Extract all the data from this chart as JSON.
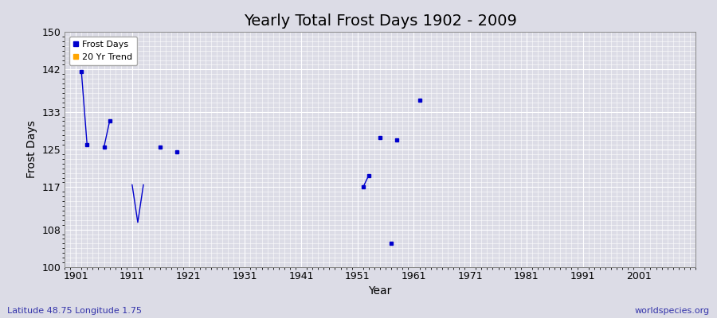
{
  "title": "Yearly Total Frost Days 1902 - 2009",
  "xlabel": "Year",
  "ylabel": "Frost Days",
  "subtitle_left": "Latitude 48.75 Longitude 1.75",
  "subtitle_right": "worldspecies.org",
  "ylim": [
    100,
    150
  ],
  "xlim": [
    1899,
    2011
  ],
  "yticks": [
    100,
    108,
    117,
    125,
    133,
    142,
    150
  ],
  "xticks": [
    1901,
    1911,
    1921,
    1931,
    1941,
    1951,
    1961,
    1971,
    1981,
    1991,
    2001
  ],
  "xtick_labels": [
    "1901",
    "1911",
    "1921",
    "1931",
    "1941",
    "1951",
    "1961",
    "1971",
    "1981",
    "1991",
    "2001"
  ],
  "background_color": "#dcdce6",
  "plot_bg_color": "#dcdce6",
  "grid_color": "#ffffff",
  "frost_days_color": "#0000cc",
  "trend_color": "#ffa500",
  "frost_points": [
    [
      1902,
      141.5
    ],
    [
      1903,
      126.0
    ],
    [
      1906,
      125.5
    ],
    [
      1907,
      131.0
    ],
    [
      1916,
      125.5
    ],
    [
      1919,
      124.5
    ],
    [
      1952,
      117.0
    ],
    [
      1953,
      119.5
    ],
    [
      1955,
      127.5
    ],
    [
      1957,
      105.0
    ],
    [
      1962,
      135.5
    ],
    [
      1958,
      127.0
    ]
  ],
  "frost_lines": [
    [
      [
        1902,
        141.5
      ],
      [
        1903,
        126.0
      ]
    ],
    [
      [
        1906,
        125.5
      ],
      [
        1907,
        131.0
      ]
    ],
    [
      [
        1911,
        117.5
      ],
      [
        1912,
        109.5
      ],
      [
        1913,
        117.5
      ]
    ],
    [
      [
        1952,
        117.0
      ],
      [
        1953,
        119.5
      ]
    ]
  ],
  "legend_loc": "upper left",
  "title_fontsize": 14,
  "axis_label_fontsize": 10,
  "tick_fontsize": 9,
  "subtitle_fontsize": 8,
  "subtitle_color": "#3333aa",
  "legend_fontsize": 8
}
